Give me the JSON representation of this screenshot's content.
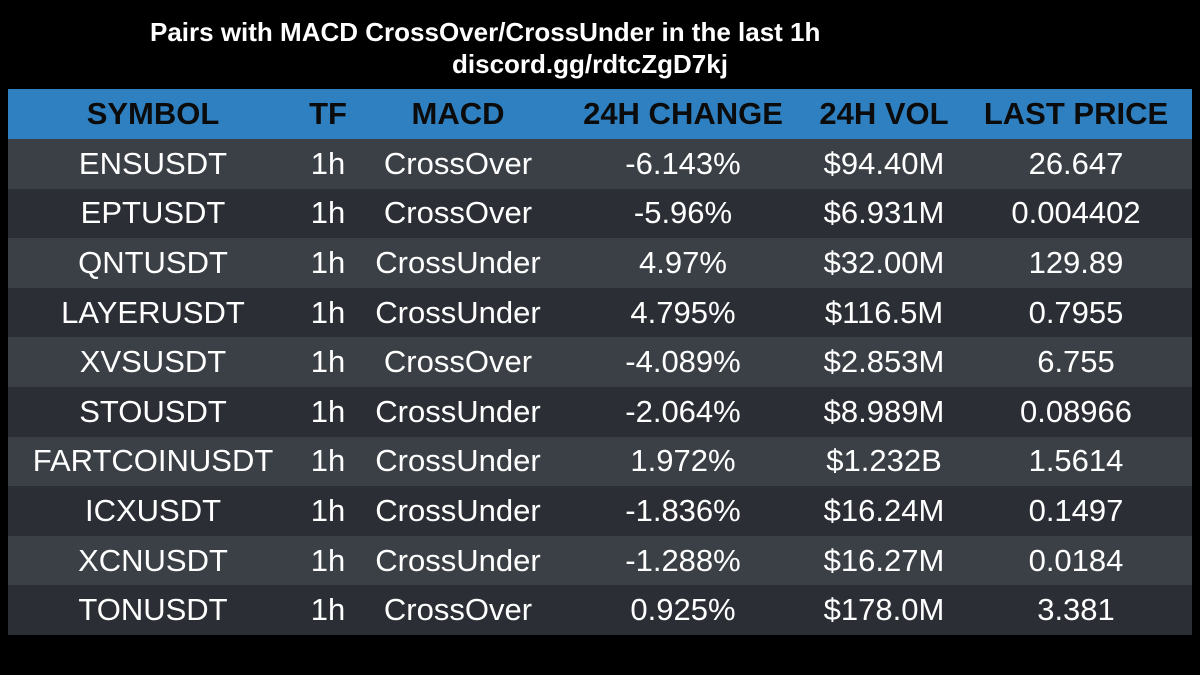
{
  "header": {
    "title": "Pairs with MACD CrossOver/CrossUnder in the last 1h",
    "subtitle": "discord.gg/rdtcZgD7kj"
  },
  "table": {
    "columns": [
      "SYMBOL",
      "TF",
      "MACD",
      "24H CHANGE",
      "24H VOL",
      "LAST PRICE"
    ],
    "rows": [
      [
        "ENSUSDT",
        "1h",
        "CrossOver",
        "-6.143%",
        "$94.40M",
        "26.647"
      ],
      [
        "EPTUSDT",
        "1h",
        "CrossOver",
        "-5.96%",
        "$6.931M",
        "0.004402"
      ],
      [
        "QNTUSDT",
        "1h",
        "CrossUnder",
        "4.97%",
        "$32.00M",
        "129.89"
      ],
      [
        "LAYERUSDT",
        "1h",
        "CrossUnder",
        "4.795%",
        "$116.5M",
        "0.7955"
      ],
      [
        "XVSUSDT",
        "1h",
        "CrossOver",
        "-4.089%",
        "$2.853M",
        "6.755"
      ],
      [
        "STOUSDT",
        "1h",
        "CrossUnder",
        "-2.064%",
        "$8.989M",
        "0.08966"
      ],
      [
        "FARTCOINUSDT",
        "1h",
        "CrossUnder",
        "1.972%",
        "$1.232B",
        "1.5614"
      ],
      [
        "ICXUSDT",
        "1h",
        "CrossUnder",
        "-1.836%",
        "$16.24M",
        "0.1497"
      ],
      [
        "XCNUSDT",
        "1h",
        "CrossUnder",
        "-1.288%",
        "$16.27M",
        "0.0184"
      ],
      [
        "TONUSDT",
        "1h",
        "CrossOver",
        "0.925%",
        "$178.0M",
        "3.381"
      ]
    ]
  },
  "colors": {
    "background": "#000000",
    "header_bg": "#2f80c0",
    "row_odd": "#3b4046",
    "row_even": "#2b2f35",
    "text": "#ffffff"
  }
}
